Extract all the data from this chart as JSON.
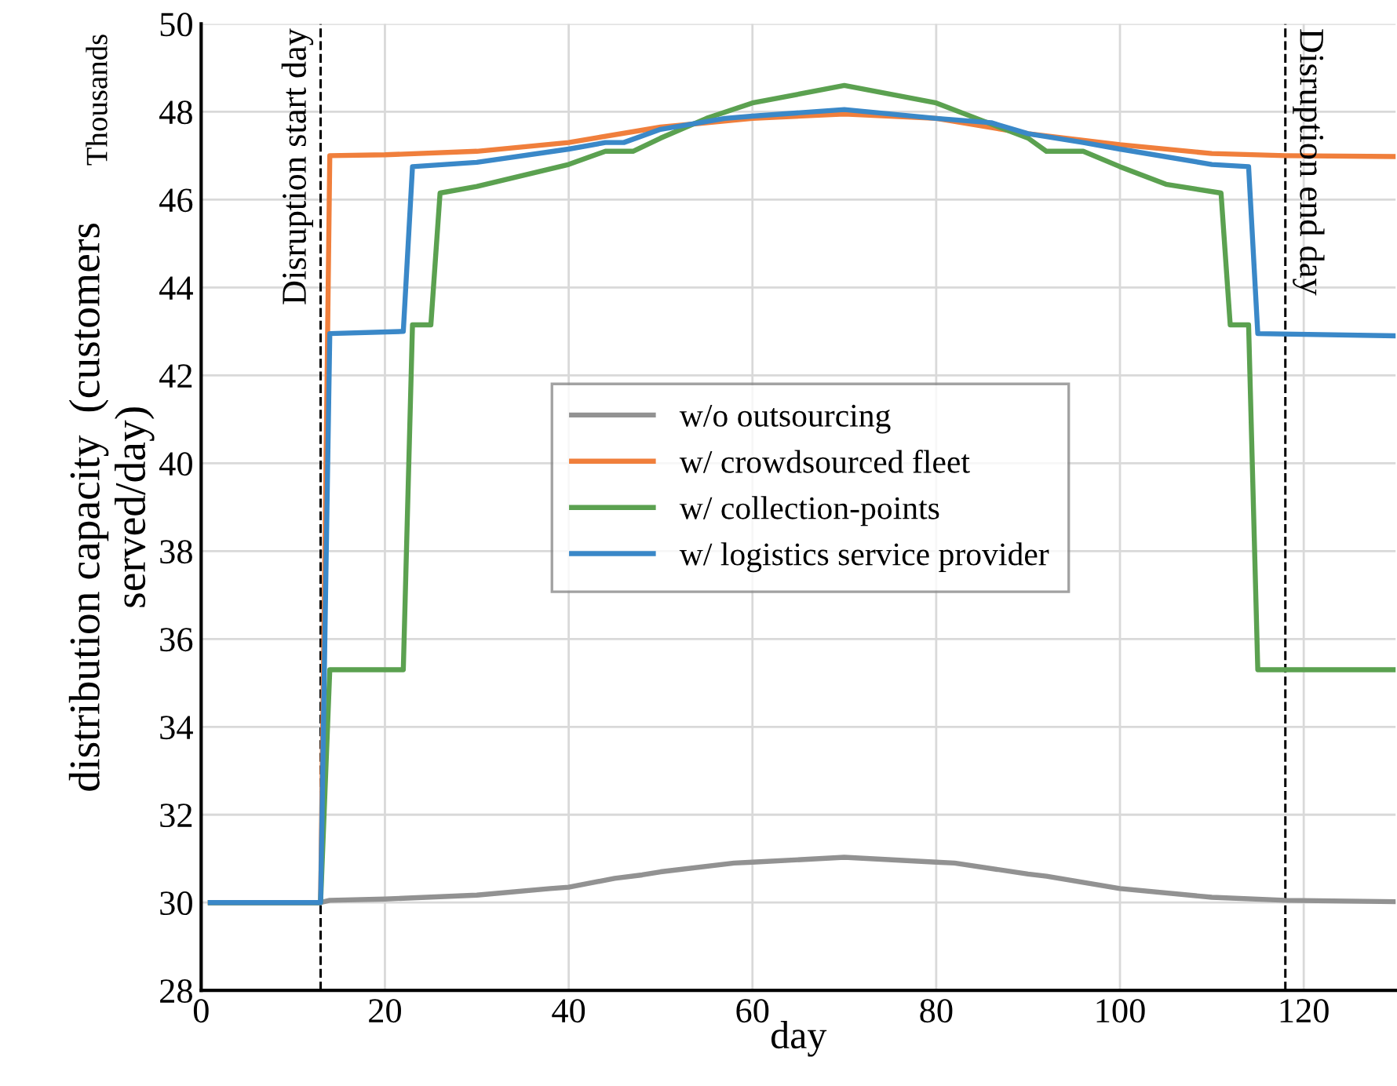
{
  "chart_data": {
    "type": "line",
    "xlabel": "day",
    "ylabel": "distribution capacity  (customers\nserved/day)",
    "annotations": [
      "Thousands"
    ],
    "xlim": [
      0,
      130
    ],
    "xticks": [
      0,
      20,
      40,
      60,
      80,
      100,
      120
    ],
    "ylim": [
      28,
      50
    ],
    "yticks": [
      28,
      30,
      32,
      34,
      36,
      38,
      40,
      42,
      44,
      46,
      48,
      50
    ],
    "grid": true,
    "legend": "center",
    "marker": "none",
    "line_style": "solid",
    "ref_lines": [
      {
        "axis": "x",
        "value": 13,
        "label": "Disruption start day",
        "color": "#000000",
        "line_style": "dashed"
      },
      {
        "axis": "x",
        "value": 118,
        "label": "Disruption end day",
        "color": "#000000",
        "line_style": "dashed"
      }
    ],
    "series": [
      {
        "name": "w/o outsourcing",
        "color": "#929292",
        "x": [
          1,
          13,
          14,
          20,
          30,
          38,
          40,
          45,
          48,
          50,
          58,
          60,
          70,
          80,
          82,
          90,
          92,
          100,
          110,
          118,
          130
        ],
        "values": [
          30,
          30,
          30.05,
          30.08,
          30.17,
          30.32,
          30.35,
          30.55,
          30.63,
          30.7,
          30.9,
          30.92,
          31.03,
          30.92,
          30.9,
          30.65,
          30.6,
          30.32,
          30.12,
          30.05,
          30.02
        ]
      },
      {
        "name": "w/ crowdsourced fleet",
        "color": "#f07f3c",
        "x": [
          1,
          13,
          14,
          20,
          30,
          40,
          50,
          60,
          70,
          80,
          90,
          100,
          110,
          118,
          130
        ],
        "values": [
          30,
          30,
          47.0,
          47.02,
          47.1,
          47.3,
          47.65,
          47.85,
          47.95,
          47.85,
          47.5,
          47.25,
          47.05,
          47.0,
          46.98
        ]
      },
      {
        "name": "w/ collection-points",
        "color": "#5ba150",
        "x": [
          1,
          13,
          14,
          22,
          23,
          25,
          26,
          30,
          40,
          44,
          47,
          50,
          55,
          60,
          70,
          80,
          85,
          90,
          92,
          96,
          100,
          105,
          111,
          112,
          114,
          115,
          130
        ],
        "values": [
          30,
          30,
          35.3,
          35.3,
          43.15,
          43.15,
          46.15,
          46.3,
          46.8,
          47.1,
          47.1,
          47.4,
          47.85,
          48.2,
          48.6,
          48.2,
          47.8,
          47.4,
          47.1,
          47.1,
          46.75,
          46.35,
          46.15,
          43.15,
          43.15,
          35.3,
          35.3
        ]
      },
      {
        "name": "w/ logistics service provider",
        "color": "#3a88c8",
        "x": [
          1,
          13,
          14,
          22,
          23,
          30,
          40,
          44,
          46,
          50,
          57,
          60,
          70,
          80,
          86,
          90,
          96,
          100,
          110,
          114,
          115,
          130
        ],
        "values": [
          30,
          30,
          42.95,
          43.0,
          46.75,
          46.85,
          47.15,
          47.3,
          47.3,
          47.6,
          47.85,
          47.9,
          48.05,
          47.85,
          47.75,
          47.5,
          47.3,
          47.15,
          46.8,
          46.75,
          42.95,
          42.9
        ]
      }
    ]
  }
}
